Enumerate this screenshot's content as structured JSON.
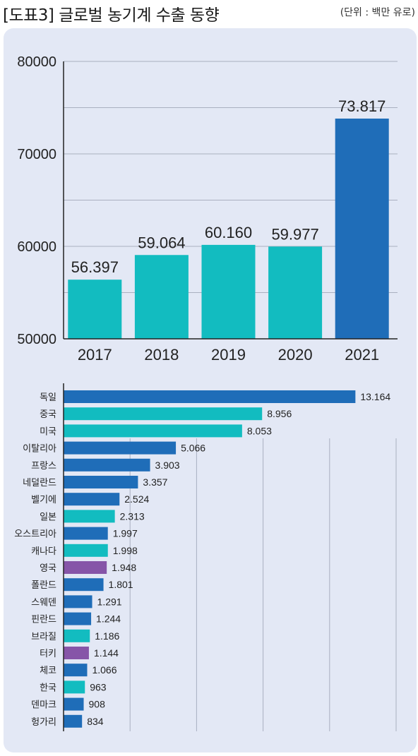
{
  "header": {
    "title": "[도표3] 글로벌 농기계 수출 동향",
    "unit": "(단위 : 백만 유로)"
  },
  "colors": {
    "teal": "#12bcc0",
    "blue": "#1f6db8",
    "purple": "#8655a8",
    "background": "#e3e8f5"
  },
  "chart_data": [
    {
      "type": "bar",
      "title": "",
      "categories": [
        "2017",
        "2018",
        "2019",
        "2020",
        "2021"
      ],
      "values": [
        56397,
        59064,
        60160,
        59977,
        73817
      ],
      "value_labels": [
        "56.397",
        "59.064",
        "60.160",
        "59.977",
        "73.817"
      ],
      "bar_colors": [
        "teal",
        "teal",
        "teal",
        "teal",
        "blue"
      ],
      "yticks": [
        "50000",
        "60000",
        "70000",
        "80000"
      ],
      "ylim": [
        50000,
        80000
      ],
      "grid": true
    },
    {
      "type": "bar",
      "orientation": "horizontal",
      "categories": [
        "독일",
        "중국",
        "미국",
        "이탈리아",
        "프랑스",
        "네덜란드",
        "벨기에",
        "일본",
        "오스트리아",
        "캐나다",
        "영국",
        "폴란드",
        "스웨덴",
        "핀란드",
        "브라질",
        "터키",
        "체코",
        "한국",
        "덴마크",
        "헝가리"
      ],
      "values": [
        13164,
        8956,
        8053,
        5066,
        3903,
        3357,
        2524,
        2313,
        1997,
        1998,
        1948,
        1801,
        1291,
        1244,
        1186,
        1144,
        1066,
        963,
        908,
        834
      ],
      "value_labels": [
        "13.164",
        "8.956",
        "8.053",
        "5.066",
        "3.903",
        "3.357",
        "2.524",
        "2.313",
        "1.997",
        "1.998",
        "1.948",
        "1.801",
        "1.291",
        "1.244",
        "1.186",
        "1.144",
        "1.066",
        "963",
        "908",
        "834"
      ],
      "bar_colors": [
        "blue",
        "teal",
        "teal",
        "blue",
        "blue",
        "blue",
        "blue",
        "teal",
        "blue",
        "teal",
        "purple",
        "blue",
        "blue",
        "blue",
        "teal",
        "purple",
        "blue",
        "teal",
        "blue",
        "blue"
      ],
      "xlim": [
        0,
        15000
      ],
      "grid": true
    }
  ]
}
